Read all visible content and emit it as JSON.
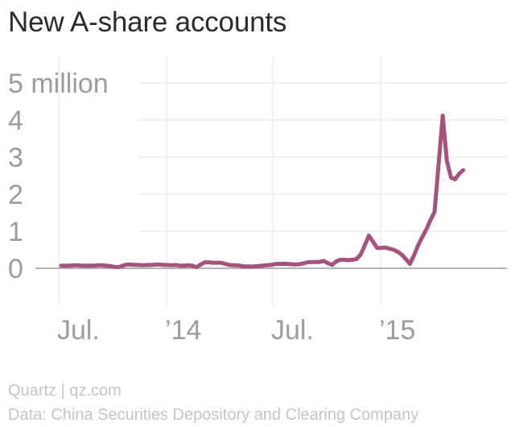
{
  "title": "New A-share accounts",
  "source": "Quartz | qz.com",
  "credit": "Data: China Securities Depository and Clearing Company",
  "colors": {
    "line": "#a5527f",
    "grid": "#ebebeb",
    "zero": "#9a9a9a",
    "tick_text": "#9c9c9c"
  },
  "chart_data": {
    "type": "line",
    "title": "New A-share accounts",
    "xlabel": "",
    "ylabel": "",
    "unit": "million",
    "ylim": [
      0,
      5
    ],
    "y_ticks": [
      "0",
      "1",
      "2",
      "3",
      "4",
      "5 million"
    ],
    "x_ticks": [
      {
        "label": "Jul.",
        "date": "2013-07"
      },
      {
        "label": "’14",
        "date": "2014-01"
      },
      {
        "label": "Jul.",
        "date": "2014-07"
      },
      {
        "label": "’15",
        "date": "2015-01"
      }
    ],
    "grid": true,
    "legend": "none",
    "series": [
      {
        "frequency": "weekly",
        "x": [
          "2013-07-05",
          "2013-07-12",
          "2013-07-19",
          "2013-07-26",
          "2013-08-02",
          "2013-08-09",
          "2013-08-16",
          "2013-08-23",
          "2013-08-30",
          "2013-09-06",
          "2013-09-13",
          "2013-09-20",
          "2013-09-27",
          "2013-10-04",
          "2013-10-11",
          "2013-10-18",
          "2013-10-25",
          "2013-11-01",
          "2013-11-08",
          "2013-11-15",
          "2013-11-22",
          "2013-11-29",
          "2013-12-06",
          "2013-12-13",
          "2013-12-20",
          "2013-12-27",
          "2014-01-03",
          "2014-01-10",
          "2014-01-17",
          "2014-01-24",
          "2014-01-31",
          "2014-02-07",
          "2014-02-14",
          "2014-02-21",
          "2014-02-28",
          "2014-03-07",
          "2014-03-14",
          "2014-03-21",
          "2014-03-28",
          "2014-04-04",
          "2014-04-11",
          "2014-04-18",
          "2014-04-25",
          "2014-05-02",
          "2014-05-09",
          "2014-05-16",
          "2014-05-23",
          "2014-05-30",
          "2014-06-06",
          "2014-06-13",
          "2014-06-20",
          "2014-06-27",
          "2014-07-04",
          "2014-07-11",
          "2014-07-18",
          "2014-07-25",
          "2014-08-01",
          "2014-08-08",
          "2014-08-15",
          "2014-08-22",
          "2014-08-29",
          "2014-09-05",
          "2014-09-12",
          "2014-09-19",
          "2014-09-26",
          "2014-10-03",
          "2014-10-10",
          "2014-10-17",
          "2014-10-24",
          "2014-10-31",
          "2014-11-07",
          "2014-11-14",
          "2014-11-21",
          "2014-11-28",
          "2014-12-05",
          "2014-12-12",
          "2014-12-19",
          "2014-12-26",
          "2015-01-02",
          "2015-01-09",
          "2015-01-16",
          "2015-01-23",
          "2015-01-30",
          "2015-02-06",
          "2015-02-13",
          "2015-02-20",
          "2015-02-27",
          "2015-03-06",
          "2015-03-13",
          "2015-03-20",
          "2015-03-27",
          "2015-04-03",
          "2015-04-10",
          "2015-04-17",
          "2015-04-24",
          "2015-05-01",
          "2015-05-08",
          "2015-05-15",
          "2015-05-22"
        ],
        "values": [
          0.07,
          0.07,
          0.07,
          0.08,
          0.08,
          0.07,
          0.07,
          0.07,
          0.07,
          0.08,
          0.08,
          0.07,
          0.06,
          0.04,
          0.03,
          0.07,
          0.1,
          0.1,
          0.09,
          0.09,
          0.08,
          0.09,
          0.09,
          0.1,
          0.1,
          0.09,
          0.09,
          0.08,
          0.09,
          0.07,
          0.07,
          0.08,
          0.07,
          0.03,
          0.1,
          0.16,
          0.16,
          0.15,
          0.15,
          0.15,
          0.12,
          0.09,
          0.08,
          0.08,
          0.06,
          0.05,
          0.05,
          0.05,
          0.06,
          0.07,
          0.08,
          0.09,
          0.11,
          0.12,
          0.12,
          0.12,
          0.11,
          0.1,
          0.11,
          0.13,
          0.16,
          0.17,
          0.17,
          0.17,
          0.2,
          0.14,
          0.09,
          0.18,
          0.23,
          0.23,
          0.22,
          0.23,
          0.25,
          0.37,
          0.62,
          0.88,
          0.72,
          0.55,
          0.55,
          0.56,
          0.53,
          0.5,
          0.45,
          0.37,
          0.25,
          0.12,
          0.35,
          0.62,
          0.84,
          1.05,
          1.3,
          1.52,
          2.82,
          4.12,
          2.9,
          2.45,
          2.4,
          2.55,
          2.65
        ]
      }
    ]
  }
}
